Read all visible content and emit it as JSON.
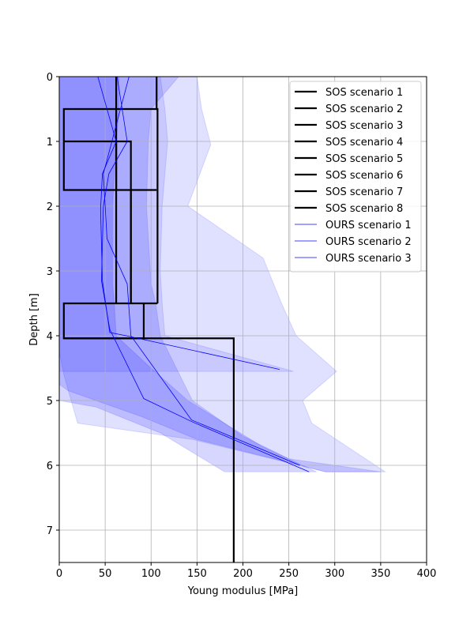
{
  "chart_data": {
    "type": "line",
    "xlabel": "Young modulus [MPa]",
    "ylabel": "Depth [m]",
    "xlim": [
      0,
      400
    ],
    "ylim": [
      7.5,
      0
    ],
    "y_inverted": true,
    "grid": true,
    "legend_placement": "top-right",
    "xticks": [
      "0",
      "50",
      "100",
      "150",
      "200",
      "250",
      "300",
      "350",
      "400"
    ],
    "yticks": [
      "0",
      "1",
      "2",
      "3",
      "4",
      "5",
      "6",
      "7"
    ],
    "colors": {
      "sos": "#000000",
      "ours": "#0000ff",
      "band_light": "#e0e0ff",
      "band_medium": "#c8c8ff",
      "band_dark": "#b4b4ff"
    },
    "bands": [
      {
        "opacity": 0.1,
        "points": [
          [
            110,
            0
          ],
          [
            115,
            0.5
          ],
          [
            118,
            1.0
          ],
          [
            112,
            2.0
          ],
          [
            110,
            3.0
          ],
          [
            112,
            3.5
          ],
          [
            115,
            4.0
          ],
          [
            255,
            4.55
          ],
          [
            0,
            4.55
          ],
          [
            0,
            0
          ]
        ]
      },
      {
        "opacity": 0.12,
        "points": [
          [
            150,
            0
          ],
          [
            155,
            0.5
          ],
          [
            165,
            1.05
          ],
          [
            140,
            2.0
          ],
          [
            222,
            2.8
          ],
          [
            242,
            3.5
          ],
          [
            258,
            4.0
          ],
          [
            302,
            4.55
          ],
          [
            265,
            5.0
          ],
          [
            275,
            5.35
          ],
          [
            355,
            6.1
          ],
          [
            290,
            6.1
          ],
          [
            145,
            5.6
          ],
          [
            20,
            5.35
          ],
          [
            5,
            4.6
          ],
          [
            0,
            4.25
          ],
          [
            0,
            0
          ]
        ]
      },
      {
        "opacity": 0.14,
        "points": [
          [
            130,
            0
          ],
          [
            100,
            0.5
          ],
          [
            97,
            1.0
          ],
          [
            95,
            2.0
          ],
          [
            100,
            3.2
          ],
          [
            105,
            3.5
          ],
          [
            110,
            4.0
          ],
          [
            145,
            5.0
          ],
          [
            200,
            5.55
          ],
          [
            250,
            5.9
          ],
          [
            350,
            6.1
          ],
          [
            290,
            6.1
          ],
          [
            150,
            5.6
          ],
          [
            90,
            5.25
          ],
          [
            10,
            4.85
          ],
          [
            0,
            4.75
          ],
          [
            0,
            0
          ]
        ]
      },
      {
        "opacity": 0.16,
        "points": [
          [
            65,
            0
          ],
          [
            65,
            0.5
          ],
          [
            62,
            1.0
          ],
          [
            58,
            2.0
          ],
          [
            58,
            3.2
          ],
          [
            60,
            3.5
          ],
          [
            62,
            4.0
          ],
          [
            100,
            4.5
          ],
          [
            140,
            5.0
          ],
          [
            220,
            5.7
          ],
          [
            280,
            6.1
          ],
          [
            180,
            6.1
          ],
          [
            110,
            5.5
          ],
          [
            40,
            5.1
          ],
          [
            0,
            5.0
          ],
          [
            0,
            0
          ]
        ]
      }
    ],
    "series": [
      {
        "name": "SOS scenario 1",
        "color": "#000000",
        "width": 2.2,
        "x": [
          106,
          106,
          107,
          107
        ],
        "y": [
          0,
          0.5,
          0.5,
          3.5
        ]
      },
      {
        "name": "SOS scenario 2",
        "color": "#000000",
        "width": 2.2,
        "x": [
          106,
          106,
          5,
          5,
          106
        ],
        "y": [
          0.5,
          0.5,
          0.5,
          1.75,
          1.75
        ]
      },
      {
        "name": "SOS scenario 3",
        "color": "#000000",
        "width": 2.2,
        "x": [
          5,
          5,
          78,
          78
        ],
        "y": [
          1.0,
          1.0,
          1.0,
          3.5
        ]
      },
      {
        "name": "SOS scenario 4",
        "color": "#000000",
        "width": 2.2,
        "x": [
          62,
          62,
          62
        ],
        "y": [
          0,
          1.0,
          3.5
        ]
      },
      {
        "name": "SOS scenario 5",
        "color": "#000000",
        "width": 2.2,
        "x": [
          5,
          107,
          5,
          5,
          92,
          92
        ],
        "y": [
          3.5,
          3.5,
          3.5,
          4.04,
          4.04,
          3.5
        ]
      },
      {
        "name": "SOS scenario 6",
        "color": "#000000",
        "width": 2.2,
        "x": [
          5,
          190,
          190,
          190
        ],
        "y": [
          4.04,
          4.04,
          4.04,
          7.5
        ]
      },
      {
        "name": "SOS scenario 7",
        "color": "#000000",
        "width": 2.2,
        "x": [
          62,
          62
        ],
        "y": [
          1.0,
          1.75
        ]
      },
      {
        "name": "SOS scenario 8",
        "color": "#000000",
        "width": 2.2,
        "x": [
          78,
          78
        ],
        "y": [
          1.75,
          3.5
        ]
      },
      {
        "name": "OURS scenario 1",
        "color": "#0000ff",
        "width": 0.8,
        "x": [
          42,
          62,
          47,
          45,
          47,
          55,
          73,
          240
        ],
        "y": [
          0,
          1.0,
          1.5,
          2.05,
          3.15,
          3.95,
          4.0,
          4.52
        ]
      },
      {
        "name": "OURS scenario 2",
        "color": "#0000ff",
        "width": 0.8,
        "x": [
          63,
          74,
          54,
          48,
          46,
          55,
          92,
          145,
          272
        ],
        "y": [
          0,
          1.0,
          1.5,
          2.0,
          3.15,
          3.9,
          4.97,
          5.33,
          6.1
        ]
      },
      {
        "name": "OURS scenario 3",
        "color": "#0000ff",
        "width": 0.8,
        "x": [
          76,
          48,
          52,
          74,
          78,
          144,
          262
        ],
        "y": [
          0,
          1.5,
          2.5,
          3.2,
          4.0,
          5.3,
          6.0
        ]
      }
    ]
  }
}
